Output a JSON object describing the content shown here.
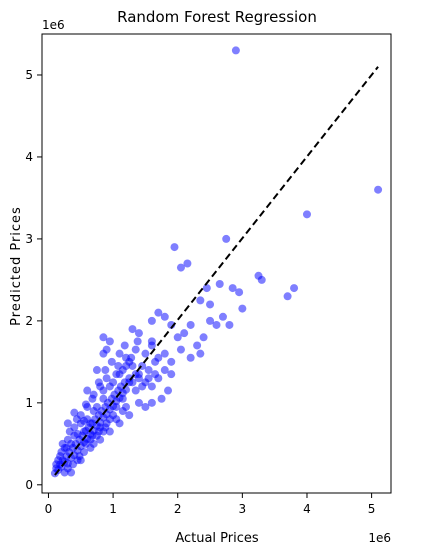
{
  "chart_data": {
    "type": "scatter",
    "title": "Random Forest Regression",
    "xlabel": "Actual Prices",
    "ylabel": "Predicted Prices",
    "x_offset_label": "1e6",
    "y_offset_label": "1e6",
    "xlim": [
      -0.1,
      5.3
    ],
    "ylim": [
      -0.1,
      5.5
    ],
    "x_ticks": [
      0,
      1,
      2,
      3,
      4,
      5
    ],
    "y_ticks": [
      0,
      1,
      2,
      3,
      4,
      5
    ],
    "grid": false,
    "point_color": "#0000ff",
    "point_opacity": 0.5,
    "reference_line": {
      "style": "dashed",
      "color": "#000000",
      "from": [
        0.1,
        0.12
      ],
      "to": [
        5.1,
        5.1
      ]
    },
    "points": [
      [
        0.1,
        0.14
      ],
      [
        0.12,
        0.2
      ],
      [
        0.15,
        0.18
      ],
      [
        0.18,
        0.25
      ],
      [
        0.2,
        0.22
      ],
      [
        0.22,
        0.3
      ],
      [
        0.25,
        0.28
      ],
      [
        0.28,
        0.35
      ],
      [
        0.3,
        0.26
      ],
      [
        0.32,
        0.4
      ],
      [
        0.35,
        0.33
      ],
      [
        0.38,
        0.45
      ],
      [
        0.4,
        0.36
      ],
      [
        0.42,
        0.5
      ],
      [
        0.45,
        0.42
      ],
      [
        0.48,
        0.55
      ],
      [
        0.5,
        0.47
      ],
      [
        0.52,
        0.6
      ],
      [
        0.55,
        0.52
      ],
      [
        0.58,
        0.66
      ],
      [
        0.6,
        0.56
      ],
      [
        0.62,
        0.7
      ],
      [
        0.65,
        0.62
      ],
      [
        0.68,
        0.75
      ],
      [
        0.7,
        0.66
      ],
      [
        0.72,
        0.8
      ],
      [
        0.75,
        0.72
      ],
      [
        0.78,
        0.85
      ],
      [
        0.8,
        0.76
      ],
      [
        0.82,
        0.9
      ],
      [
        0.85,
        0.82
      ],
      [
        0.88,
        0.95
      ],
      [
        0.9,
        0.86
      ],
      [
        0.92,
        1.0
      ],
      [
        0.95,
        0.92
      ],
      [
        0.98,
        1.05
      ],
      [
        1.0,
        0.96
      ],
      [
        1.02,
        1.1
      ],
      [
        1.05,
        1.02
      ],
      [
        1.08,
        1.15
      ],
      [
        1.1,
        1.06
      ],
      [
        1.12,
        1.2
      ],
      [
        1.15,
        1.12
      ],
      [
        1.18,
        1.25
      ],
      [
        1.2,
        1.16
      ],
      [
        1.25,
        1.3
      ],
      [
        1.3,
        1.25
      ],
      [
        1.35,
        1.35
      ],
      [
        1.4,
        1.3
      ],
      [
        0.3,
        0.55
      ],
      [
        0.4,
        0.7
      ],
      [
        0.5,
        0.85
      ],
      [
        0.6,
        0.95
      ],
      [
        0.7,
        1.1
      ],
      [
        0.8,
        1.2
      ],
      [
        0.9,
        1.3
      ],
      [
        0.35,
        0.15
      ],
      [
        0.5,
        0.3
      ],
      [
        0.65,
        0.45
      ],
      [
        0.8,
        0.55
      ],
      [
        0.95,
        0.65
      ],
      [
        1.1,
        0.75
      ],
      [
        1.25,
        0.85
      ],
      [
        0.45,
        0.62
      ],
      [
        0.55,
        0.78
      ],
      [
        0.75,
        0.95
      ],
      [
        0.85,
        1.05
      ],
      [
        1.0,
        1.25
      ],
      [
        1.1,
        1.35
      ],
      [
        1.2,
        1.45
      ],
      [
        0.25,
        0.45
      ],
      [
        0.3,
        0.75
      ],
      [
        0.4,
        0.88
      ],
      [
        0.6,
        1.15
      ],
      [
        0.75,
        1.4
      ],
      [
        0.85,
        1.6
      ],
      [
        0.9,
        1.65
      ],
      [
        0.85,
        1.8
      ],
      [
        0.95,
        1.75
      ],
      [
        1.1,
        1.6
      ],
      [
        1.2,
        1.55
      ],
      [
        1.25,
        1.5
      ],
      [
        1.3,
        1.45
      ],
      [
        1.35,
        1.65
      ],
      [
        1.4,
        1.35
      ],
      [
        1.45,
        1.45
      ],
      [
        1.5,
        1.6
      ],
      [
        1.55,
        1.4
      ],
      [
        1.6,
        1.75
      ],
      [
        1.65,
        1.5
      ],
      [
        1.7,
        1.55
      ],
      [
        1.5,
        1.25
      ],
      [
        1.6,
        1.2
      ],
      [
        1.7,
        1.3
      ],
      [
        1.8,
        1.4
      ],
      [
        1.9,
        1.5
      ],
      [
        1.75,
        1.05
      ],
      [
        1.85,
        1.15
      ],
      [
        1.4,
        1.0
      ],
      [
        1.5,
        0.95
      ],
      [
        1.6,
        1.0
      ],
      [
        1.3,
        1.9
      ],
      [
        1.4,
        1.85
      ],
      [
        1.6,
        1.7
      ],
      [
        1.8,
        1.6
      ],
      [
        1.9,
        1.95
      ],
      [
        2.0,
        1.8
      ],
      [
        2.1,
        1.85
      ],
      [
        2.2,
        1.95
      ],
      [
        2.3,
        1.7
      ],
      [
        2.4,
        1.8
      ],
      [
        2.5,
        2.0
      ],
      [
        2.6,
        1.95
      ],
      [
        2.7,
        2.05
      ],
      [
        2.8,
        1.95
      ],
      [
        2.2,
        1.55
      ],
      [
        2.35,
        1.6
      ],
      [
        1.9,
        1.35
      ],
      [
        2.05,
        1.65
      ],
      [
        1.95,
        2.9
      ],
      [
        2.05,
        2.65
      ],
      [
        2.15,
        2.7
      ],
      [
        2.35,
        2.25
      ],
      [
        2.45,
        2.4
      ],
      [
        2.5,
        2.2
      ],
      [
        2.75,
        3.0
      ],
      [
        2.85,
        2.4
      ],
      [
        2.95,
        2.35
      ],
      [
        3.0,
        2.15
      ],
      [
        3.25,
        2.55
      ],
      [
        3.3,
        2.5
      ],
      [
        3.7,
        2.3
      ],
      [
        3.8,
        2.4
      ],
      [
        2.65,
        2.45
      ],
      [
        2.9,
        5.3
      ],
      [
        4.0,
        3.3
      ],
      [
        5.1,
        3.6
      ],
      [
        1.6,
        2.0
      ],
      [
        1.7,
        2.1
      ],
      [
        1.8,
        2.05
      ],
      [
        0.15,
        0.3
      ],
      [
        0.2,
        0.4
      ],
      [
        0.25,
        0.15
      ],
      [
        0.3,
        0.2
      ],
      [
        0.35,
        0.5
      ],
      [
        0.45,
        0.3
      ],
      [
        0.55,
        0.4
      ],
      [
        0.65,
        0.55
      ],
      [
        0.7,
        0.5
      ],
      [
        0.8,
        0.7
      ],
      [
        0.9,
        0.75
      ],
      [
        1.0,
        0.85
      ],
      [
        1.05,
        0.8
      ],
      [
        1.15,
        0.9
      ],
      [
        1.2,
        0.95
      ],
      [
        0.5,
        0.75
      ],
      [
        0.6,
        0.8
      ],
      [
        0.7,
        0.9
      ],
      [
        0.85,
        1.15
      ],
      [
        0.95,
        1.2
      ],
      [
        1.05,
        1.35
      ],
      [
        1.15,
        1.4
      ],
      [
        1.25,
        1.25
      ],
      [
        1.35,
        1.15
      ],
      [
        1.45,
        1.2
      ],
      [
        1.55,
        1.3
      ],
      [
        1.65,
        1.35
      ],
      [
        0.4,
        0.6
      ],
      [
        0.55,
        0.65
      ],
      [
        0.65,
        0.75
      ],
      [
        0.75,
        0.6
      ],
      [
        0.85,
        0.65
      ],
      [
        0.95,
        0.8
      ],
      [
        1.05,
        0.95
      ],
      [
        1.15,
        1.05
      ],
      [
        0.22,
        0.5
      ],
      [
        0.33,
        0.65
      ],
      [
        0.44,
        0.8
      ],
      [
        0.58,
        0.98
      ],
      [
        0.68,
        1.05
      ],
      [
        0.78,
        1.25
      ],
      [
        0.88,
        1.4
      ],
      [
        0.98,
        1.5
      ],
      [
        1.08,
        1.45
      ],
      [
        1.18,
        1.7
      ],
      [
        1.28,
        1.55
      ],
      [
        1.38,
        1.75
      ],
      [
        0.12,
        0.25
      ],
      [
        0.18,
        0.35
      ],
      [
        0.28,
        0.45
      ],
      [
        0.38,
        0.25
      ],
      [
        0.48,
        0.35
      ],
      [
        0.58,
        0.5
      ],
      [
        0.68,
        0.6
      ],
      [
        0.78,
        0.65
      ],
      [
        0.88,
        0.7
      ]
    ]
  }
}
